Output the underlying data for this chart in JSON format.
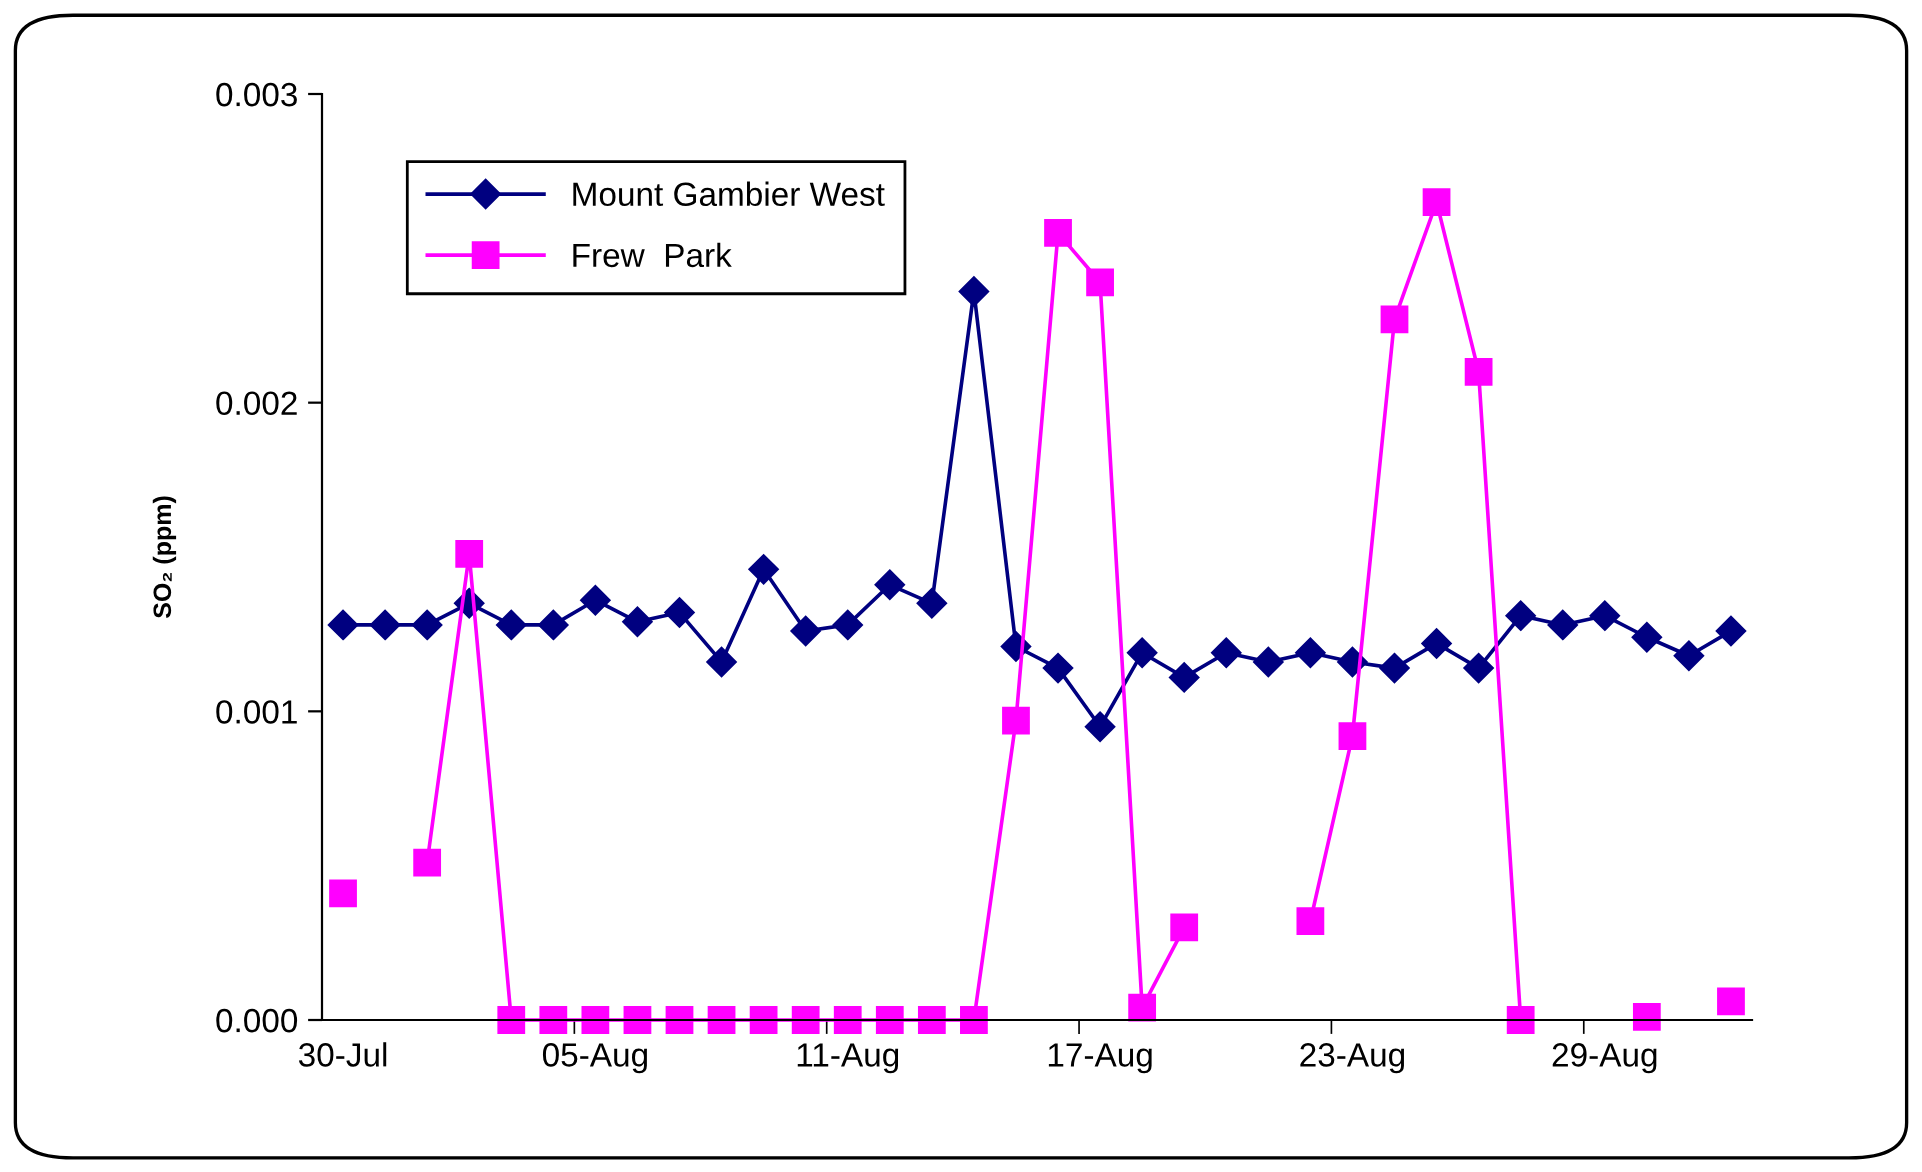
{
  "chart_data": {
    "type": "line",
    "ylabel": "SO₂ (ppm)",
    "categories": [
      "30-Jul",
      null,
      null,
      null,
      null,
      null,
      "05-Aug",
      null,
      null,
      null,
      null,
      null,
      "11-Aug",
      null,
      null,
      null,
      null,
      null,
      "17-Aug",
      null,
      null,
      null,
      null,
      null,
      "23-Aug",
      null,
      null,
      null,
      null,
      null,
      "29-Aug",
      null,
      null,
      null
    ],
    "series": [
      {
        "name": "Mount Gambier West",
        "color": "#000080",
        "marker": "diamond",
        "values": [
          0.00128,
          0.00128,
          0.00128,
          0.00135,
          0.00128,
          0.00128,
          0.00136,
          0.00129,
          0.00132,
          0.00116,
          0.00146,
          0.00126,
          0.00128,
          0.00141,
          0.00135,
          0.00236,
          0.00121,
          0.00114,
          0.00095,
          0.00119,
          0.00111,
          0.00119,
          0.00116,
          0.00119,
          0.00116,
          0.00114,
          0.00122,
          0.00114,
          0.00131,
          0.00128,
          0.00131,
          0.00124,
          0.00118,
          0.00126
        ]
      },
      {
        "name": "Frew  Park",
        "color": "#ff00ff",
        "marker": "square",
        "values": [
          0.00041,
          null,
          0.00051,
          0.00151,
          0,
          0,
          0,
          0,
          0,
          0,
          0,
          0,
          0,
          0,
          0,
          0,
          0.00097,
          0.00255,
          0.00239,
          4e-05,
          0.0003,
          null,
          null,
          0.00032,
          0.00092,
          0.00227,
          0.00265,
          0.0021,
          0,
          null,
          null,
          1e-05,
          null,
          6e-05
        ]
      }
    ],
    "ylim": [
      0,
      0.003
    ],
    "yticks": [
      {
        "value": 0,
        "label": "0.000"
      },
      {
        "value": 0.001,
        "label": "0.001"
      },
      {
        "value": 0.002,
        "label": "0.002"
      },
      {
        "value": 0.003,
        "label": "0.003"
      }
    ],
    "grid": false,
    "legend": "top left",
    "line_style": "solid"
  }
}
